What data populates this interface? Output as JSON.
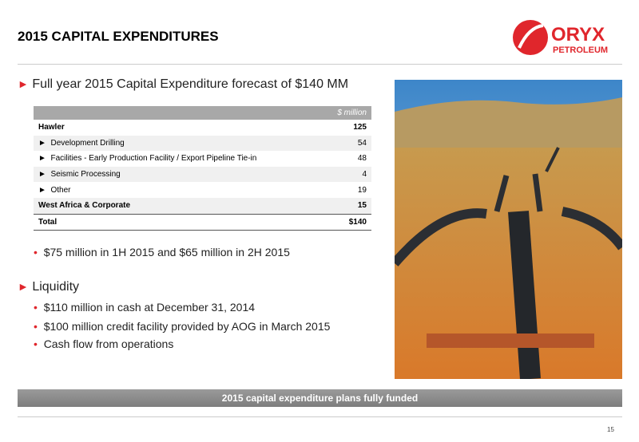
{
  "header": {
    "title": "2015 CAPITAL EXPENDITURES",
    "logo": {
      "name": "ORYX",
      "sub": "PETROLEUM"
    }
  },
  "forecast": {
    "text": "Full year 2015 Capital Expenditure forecast of $140 MM",
    "table": {
      "unit": "$ million",
      "rows": [
        [
          "Hawler",
          "125"
        ],
        [
          "Development Drilling",
          "54"
        ],
        [
          "Facilities - Early Production Facility / Export Pipeline Tie-in",
          "48"
        ],
        [
          "Seismic Processing",
          "4"
        ],
        [
          "Other",
          "19"
        ],
        [
          "West Africa & Corporate",
          "15"
        ],
        [
          "Total",
          "$140"
        ]
      ]
    },
    "note": "$75 million in 1H 2015 and $65 million in 2H 2015"
  },
  "liquidity": {
    "title": "Liquidity",
    "items": [
      "$110 million in cash at December 31, 2014",
      "$100 million credit facility provided by AOG in March 2015",
      "Cash flow from operations"
    ]
  },
  "footer": {
    "banner": "2015 capital expenditure plans fully funded",
    "page": "15"
  }
}
